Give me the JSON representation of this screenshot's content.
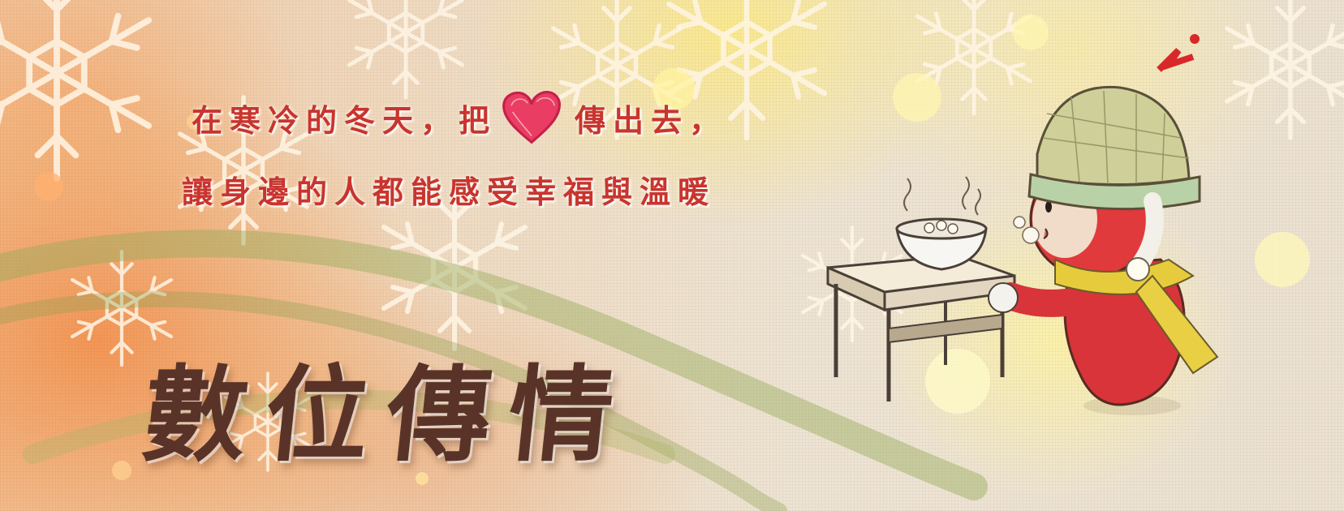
{
  "banner": {
    "tagline_line1_part1": "在寒冷的冬天，把",
    "tagline_line1_part2": "傳出去，",
    "tagline_line2": "讓身邊的人都能感受幸福與溫暖",
    "headline": "數位傳情",
    "heart_icon": "heart-icon",
    "accent_color": "#c8352e",
    "headline_color": "#5a3328",
    "heart_color": "#e8385a"
  }
}
